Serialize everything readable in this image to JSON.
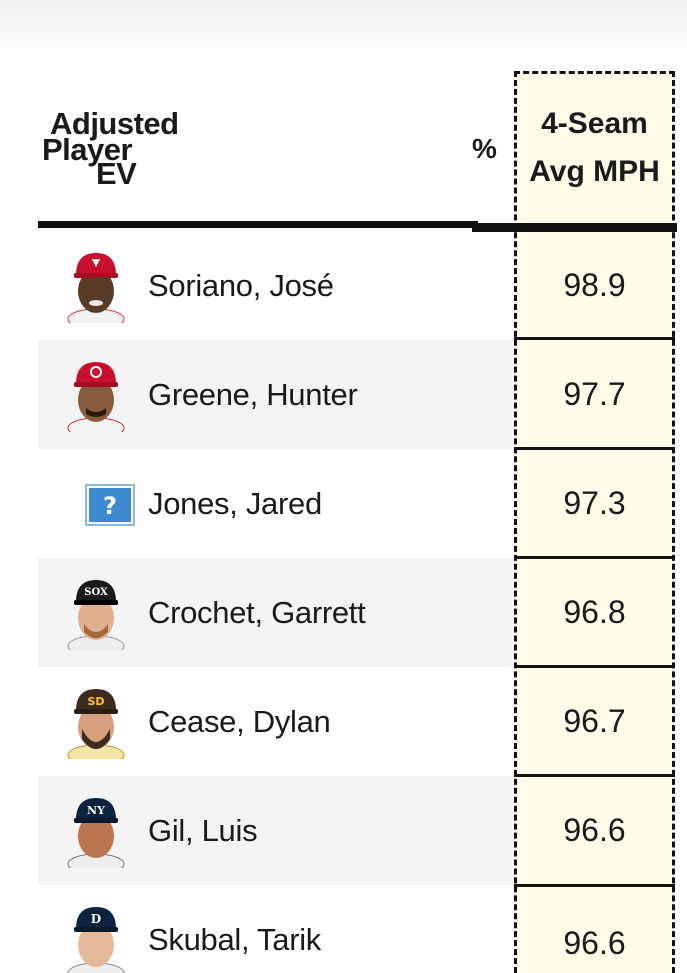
{
  "header": {
    "adjusted": "Adjusted",
    "player": "Player",
    "ev": "EV",
    "percent": "%",
    "fourseam_line1": "4-Seam",
    "fourseam_line2": "Avg MPH"
  },
  "rows": [
    {
      "name": "Soriano, José",
      "mph": "98.9",
      "cap_color": "#c8102e",
      "logo": "angels"
    },
    {
      "name": "Greene, Hunter",
      "mph": "97.7",
      "cap_color": "#c8102e",
      "logo": "reds"
    },
    {
      "name": "Jones, Jared",
      "mph": "97.3",
      "cap_color": "",
      "logo": "missing-image"
    },
    {
      "name": "Crochet, Garrett",
      "mph": "96.8",
      "cap_color": "#1a1a1a",
      "logo": "white-sox"
    },
    {
      "name": "Cease, Dylan",
      "mph": "96.7",
      "cap_color": "#3e2a1e",
      "logo": "padres"
    },
    {
      "name": "Gil, Luis",
      "mph": "96.6",
      "cap_color": "#0c2340",
      "logo": "yankees"
    },
    {
      "name": "Skubal, Tarik",
      "mph": "96.6",
      "cap_color": "#0c2340",
      "logo": "tigers"
    }
  ],
  "colors": {
    "highlight_column": "#fffde9",
    "row_shade": "#f4f4f4",
    "rule": "#111111"
  }
}
